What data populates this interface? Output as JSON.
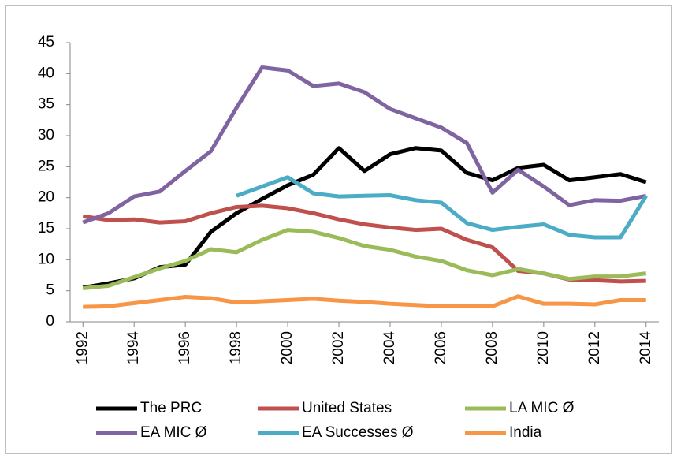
{
  "chart_data": {
    "type": "line",
    "x": [
      1992,
      1993,
      1994,
      1995,
      1996,
      1997,
      1998,
      1999,
      2000,
      2001,
      2002,
      2003,
      2004,
      2005,
      2006,
      2007,
      2008,
      2009,
      2010,
      2011,
      2012,
      2013,
      2014
    ],
    "xlim": [
      1991.5,
      2014.5
    ],
    "xticks": [
      1992,
      1994,
      1996,
      1998,
      2000,
      2002,
      2004,
      2006,
      2008,
      2010,
      2012,
      2014
    ],
    "ylim": [
      0,
      45
    ],
    "yticks": [
      0,
      5,
      10,
      15,
      20,
      25,
      30,
      35,
      40,
      45
    ],
    "series": [
      {
        "name": "The PRC",
        "color": "#000000",
        "values": [
          5.5,
          6.2,
          7,
          8.8,
          9.2,
          14.5,
          17.5,
          19.8,
          22,
          23.7,
          28,
          24.3,
          27,
          28,
          27.6,
          24,
          22.8,
          24.8,
          25.3,
          22.8,
          23.3,
          23.8,
          22.5
        ]
      },
      {
        "name": "United States",
        "color": "#c0504d",
        "values": [
          17,
          16.4,
          16.5,
          16,
          16.2,
          17.5,
          18.5,
          18.7,
          18.3,
          17.5,
          16.5,
          15.7,
          15.2,
          14.8,
          15,
          13.2,
          12,
          8.2,
          7.8,
          6.8,
          6.7,
          6.5,
          6.6
        ]
      },
      {
        "name": "LA MIC Ø",
        "color": "#9bbb59",
        "values": [
          5.4,
          5.8,
          7.2,
          8.6,
          9.8,
          11.7,
          11.2,
          13.2,
          14.8,
          14.5,
          13.5,
          12.2,
          11.6,
          10.5,
          9.8,
          8.3,
          7.5,
          8.5,
          7.8,
          6.9,
          7.3,
          7.3,
          7.8
        ]
      },
      {
        "name": "EA MIC Ø",
        "color": "#8064a2",
        "values": [
          16,
          17.5,
          20.2,
          21,
          24.3,
          27.5,
          34.5,
          41,
          40.5,
          38,
          38.4,
          37,
          34.3,
          32.8,
          31.3,
          28.8,
          20.8,
          24.5,
          21.8,
          18.8,
          19.6,
          19.5,
          20.3
        ]
      },
      {
        "name": "EA Successes Ø",
        "color": "#4bacc6",
        "values": [
          null,
          null,
          null,
          null,
          null,
          null,
          20.3,
          21.8,
          23.3,
          20.7,
          20.2,
          20.3,
          20.4,
          19.6,
          19.2,
          15.9,
          14.8,
          15.3,
          15.7,
          14,
          13.6,
          13.6,
          20.3
        ]
      },
      {
        "name": "India",
        "color": "#f79646",
        "values": [
          2.4,
          2.5,
          3,
          3.5,
          4,
          3.8,
          3.1,
          3.3,
          3.5,
          3.7,
          3.4,
          3.2,
          2.9,
          2.7,
          2.5,
          2.5,
          2.5,
          4.1,
          2.9,
          2.9,
          2.8,
          3.5,
          3.5
        ]
      }
    ]
  }
}
